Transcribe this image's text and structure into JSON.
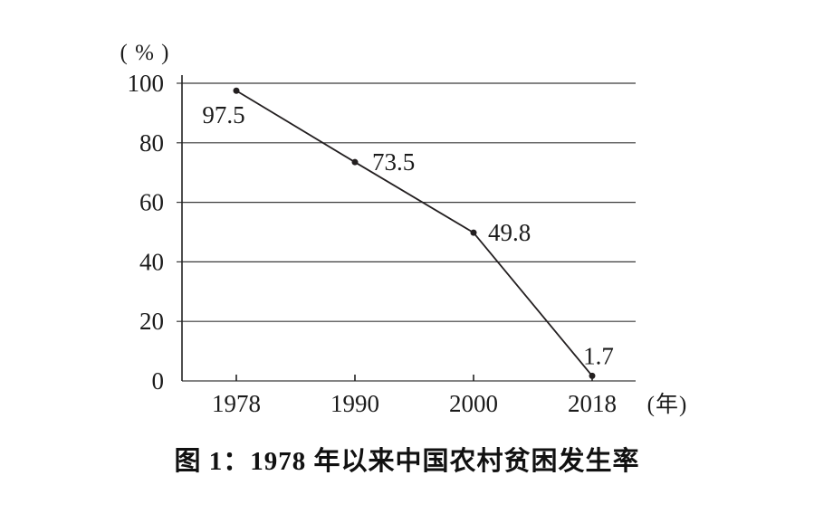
{
  "figure": {
    "caption": "图 1：1978 年以来中国农村贫困发生率"
  },
  "chart_data": {
    "type": "line",
    "title": "图 1：1978 年以来中国农村贫困发生率",
    "categories": [
      "1978",
      "1990",
      "2000",
      "2018"
    ],
    "values": [
      97.5,
      73.5,
      49.8,
      1.7
    ],
    "point_labels": [
      "97.5",
      "73.5",
      "49.8",
      "1.7"
    ],
    "xlabel": "(年)",
    "ylabel": "( % )",
    "y_ticks": [
      0,
      20,
      40,
      60,
      80,
      100
    ],
    "ylim": [
      0,
      100
    ],
    "grid": true,
    "legend": "none",
    "line_color": "#231f20",
    "marker": "filled-circle",
    "background": "#ffffff",
    "text_color": "#1b1b1b"
  }
}
